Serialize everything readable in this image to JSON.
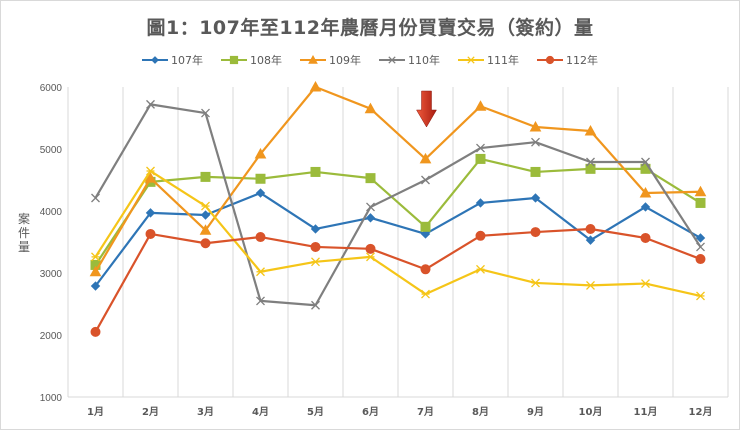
{
  "chart_data": {
    "type": "line",
    "title": "圖1：107年至112年農曆月份買賣交易（簽約）量",
    "xlabel": "",
    "ylabel": "案件量",
    "ylim": [
      1000,
      6000
    ],
    "yticks": [
      1000,
      2000,
      3000,
      4000,
      5000,
      6000
    ],
    "grid": "vertical category lines",
    "legend_position": "top",
    "categories": [
      "1月",
      "2月",
      "3月",
      "4月",
      "5月",
      "6月",
      "7月",
      "8月",
      "9月",
      "10月",
      "11月",
      "12月"
    ],
    "series": [
      {
        "name": "107年",
        "color": "#2e75b6",
        "marker": "diamond",
        "values": [
          2790,
          3970,
          3935,
          4290,
          3710,
          3890,
          3630,
          4130,
          4210,
          3530,
          4065,
          3565
        ]
      },
      {
        "name": "108年",
        "color": "#9bbb3b",
        "marker": "square",
        "values": [
          3130,
          4470,
          4550,
          4520,
          4630,
          4530,
          3745,
          4840,
          4630,
          4680,
          4680,
          4130
        ]
      },
      {
        "name": "109年",
        "color": "#f0961e",
        "marker": "triangle",
        "values": [
          3020,
          4530,
          3690,
          4920,
          6000,
          5650,
          4840,
          5690,
          5355,
          5290,
          4290,
          4310
        ]
      },
      {
        "name": "110年",
        "color": "#7f7f7f",
        "marker": "x",
        "values": [
          4210,
          5720,
          5580,
          2550,
          2480,
          4065,
          4500,
          5015,
          5110,
          4790,
          4790,
          3420
        ]
      },
      {
        "name": "111年",
        "color": "#f5c518",
        "marker": "star",
        "values": [
          3260,
          4645,
          4080,
          3020,
          3180,
          3260,
          2660,
          3060,
          2840,
          2800,
          2830,
          2630
        ]
      },
      {
        "name": "112年",
        "color": "#d9532a",
        "marker": "circle",
        "values": [
          2050,
          3630,
          3480,
          3580,
          3420,
          3390,
          3060,
          3600,
          3660,
          3710,
          3565,
          3225
        ]
      }
    ],
    "annotations": [
      {
        "type": "arrow-down",
        "category": "7月",
        "color": "#d0281a"
      }
    ]
  },
  "title": "圖1：107年至112年農曆月份買賣交易（簽約）量",
  "ylabel_chars": [
    "案",
    "件",
    "量"
  ],
  "legend": [
    "107年",
    "108年",
    "109年",
    "110年",
    "111年",
    "112年"
  ]
}
